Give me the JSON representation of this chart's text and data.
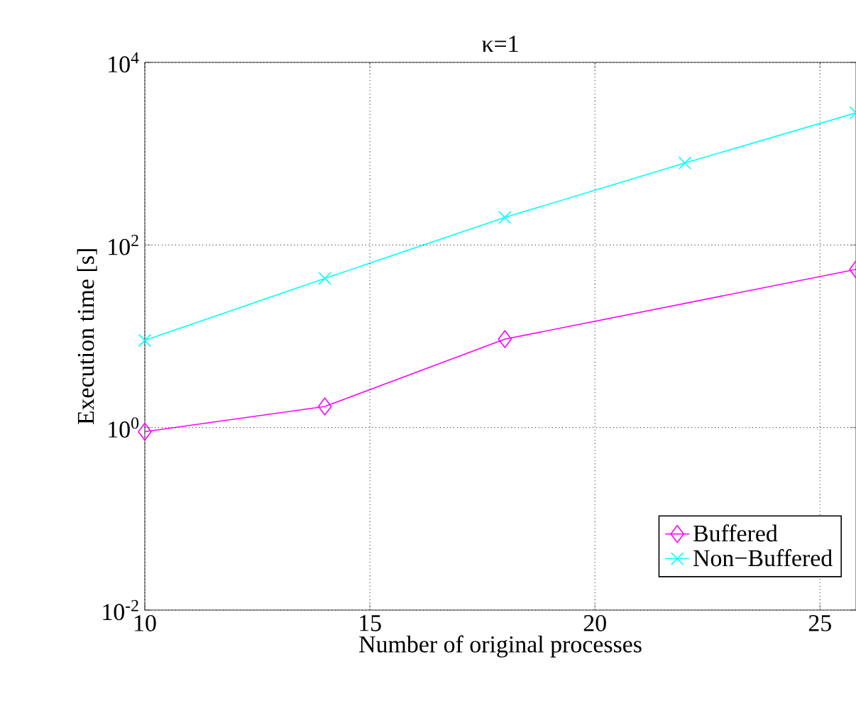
{
  "chart_data": {
    "type": "line",
    "title": "κ=1",
    "xlabel": "Number of original processes",
    "ylabel": "Execution time [s]",
    "log": "y",
    "grid": true,
    "legend": "bottom right",
    "xlim": [
      10,
      25.8
    ],
    "xticks": [
      10,
      15,
      20,
      25
    ],
    "ylim": [
      0.01,
      10000
    ],
    "yticks": [
      {
        "value": 0.01,
        "label": "10$^{-2}$"
      },
      {
        "value": 1,
        "label": "10$^{0}$"
      },
      {
        "value": 100,
        "label": "10$^{2}$"
      },
      {
        "value": 10000,
        "label": "10$^{4}$"
      }
    ],
    "series": [
      {
        "name": "Buffered",
        "color": "#ff00ff",
        "marker": "diamond",
        "x": [
          10,
          14,
          18,
          25.8
        ],
        "values": [
          0.9,
          1.7,
          9.3,
          54
        ]
      },
      {
        "name": "Non−Buffered",
        "color": "#00ffff",
        "marker": "cross",
        "x": [
          10,
          14,
          18,
          22,
          25.8
        ],
        "values": [
          9,
          43,
          200,
          790,
          2800
        ]
      }
    ]
  }
}
